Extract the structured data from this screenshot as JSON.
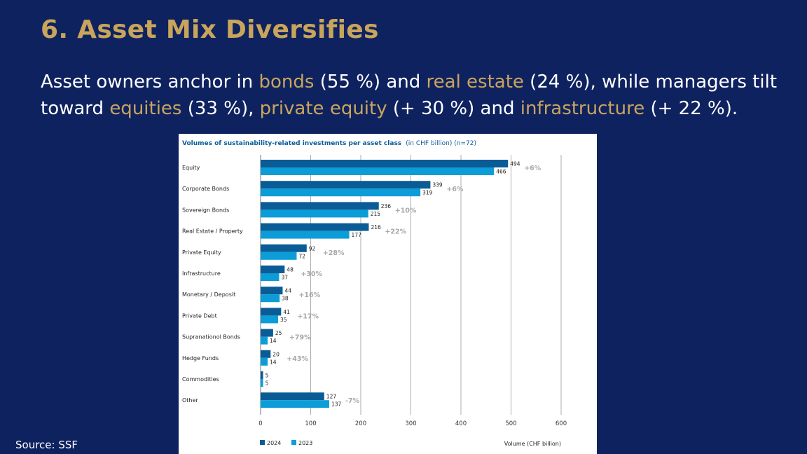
{
  "slide": {
    "title": "6. Asset Mix Diversifies",
    "subtitle_parts": [
      {
        "text": "Asset owners anchor in ",
        "highlight": false
      },
      {
        "text": "bonds",
        "highlight": true
      },
      {
        "text": " (55 %) and ",
        "highlight": false
      },
      {
        "text": "real estate",
        "highlight": true
      },
      {
        "text": " (24 %), while managers tilt toward ",
        "highlight": false
      },
      {
        "text": "equities",
        "highlight": true
      },
      {
        "text": " (33 %), ",
        "highlight": false
      },
      {
        "text": "private equity",
        "highlight": true
      },
      {
        "text": " (+ 30 %) and ",
        "highlight": false
      },
      {
        "text": "infrastructure",
        "highlight": true
      },
      {
        "text": " (+ 22 %).",
        "highlight": false
      }
    ],
    "source": "Source: SSF"
  },
  "colors": {
    "background": "#0f2260",
    "accent_gold": "#c9a55c",
    "series_2024": "#0a5c97",
    "series_2023": "#0c9dd9",
    "change_label": "#a8a8a8"
  },
  "chart_data": {
    "type": "bar",
    "orientation": "horizontal",
    "title": "Volumes of sustainability-related investments per asset class",
    "title_suffix": "(in CHF billion) (n=72)",
    "xlabel": "Volume (CHF billion)",
    "xlim": [
      0,
      600
    ],
    "xticks": [
      0,
      100,
      200,
      300,
      400,
      500,
      600
    ],
    "grid": true,
    "legend_position": "bottom-left",
    "categories": [
      "Equity",
      "Corporate Bonds",
      "Sovereign Bonds",
      "Real Estate / Property",
      "Private Equity",
      "Infrastructure",
      "Monetary / Deposit",
      "Private Debt",
      "Supranationol Bonds",
      "Hedge Funds",
      "Commodities",
      "Other"
    ],
    "series": [
      {
        "name": "2024",
        "values": [
          494,
          339,
          236,
          216,
          92,
          48,
          44,
          41,
          25,
          20,
          5,
          127
        ]
      },
      {
        "name": "2023",
        "values": [
          466,
          319,
          215,
          177,
          72,
          37,
          38,
          35,
          14,
          14,
          5,
          137
        ]
      }
    ],
    "changes": [
      "+6%",
      "+6%",
      "+10%",
      "+22%",
      "+28%",
      "+30%",
      "+16%",
      "+17%",
      "+79%",
      "+43%",
      "",
      "-7%"
    ]
  }
}
